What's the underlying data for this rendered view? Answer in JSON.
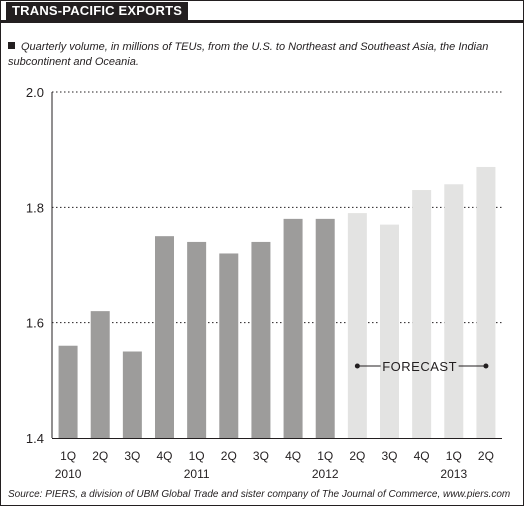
{
  "header": {
    "title": "TRANS-PACIFIC EXPORTS",
    "subtitle": "Quarterly volume, in millions of TEUs, from the U.S. to Northeast and Southeast Asia, the Indian subcontinent and Oceania."
  },
  "source": "Source: PIERS, a division of UBM Global Trade and sister company of The Journal of Commerce, www.piers.com",
  "chart_data": {
    "type": "bar",
    "title": "TRANS-PACIFIC EXPORTS",
    "categories": [
      "1Q",
      "2Q",
      "3Q",
      "4Q",
      "1Q",
      "2Q",
      "3Q",
      "4Q",
      "1Q",
      "2Q",
      "3Q",
      "4Q",
      "1Q",
      "2Q"
    ],
    "year_labels": [
      {
        "index": 0,
        "label": "2010"
      },
      {
        "index": 4,
        "label": "2011"
      },
      {
        "index": 8,
        "label": "2012"
      },
      {
        "index": 12,
        "label": "2013"
      }
    ],
    "values": [
      1.56,
      1.62,
      1.55,
      1.75,
      1.74,
      1.72,
      1.74,
      1.78,
      1.78,
      1.79,
      1.77,
      1.83,
      1.84,
      1.87
    ],
    "forecast": [
      false,
      false,
      false,
      false,
      false,
      false,
      false,
      false,
      false,
      true,
      true,
      true,
      true,
      true
    ],
    "ylim": [
      1.4,
      2.0
    ],
    "yticks": [
      "1.4",
      "1.6",
      "1.8",
      "2.0"
    ],
    "grid": true,
    "annotation": "FORECAST",
    "colors": {
      "actual": "#9d9c9b",
      "forecast": "#e3e3e2",
      "grid": "#231f20",
      "text": "#231f20"
    }
  }
}
